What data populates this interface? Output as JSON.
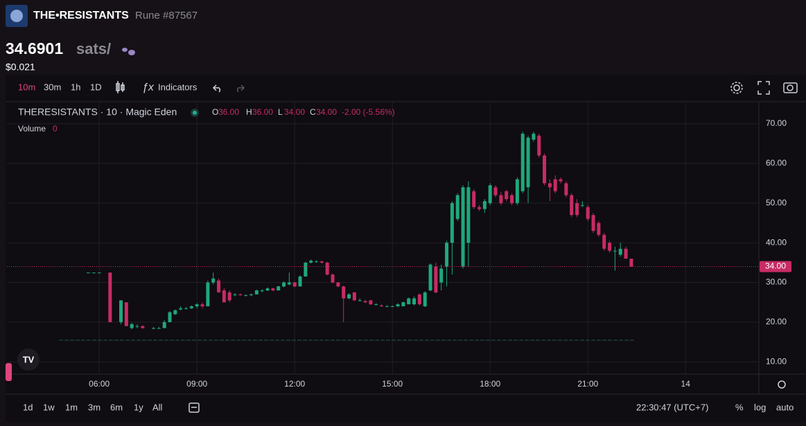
{
  "header": {
    "name": "THE•RESISTANTS",
    "rune": "Rune #87567",
    "price": "34.6901",
    "unit": "sats/",
    "usd": "$0.021"
  },
  "toolbar": {
    "intervals": [
      "10m",
      "30m",
      "1h",
      "1D"
    ],
    "indicators": "Indicators"
  },
  "bottom_bar": {
    "ranges": [
      "1d",
      "1w",
      "1m",
      "3m",
      "6m",
      "1y",
      "All"
    ],
    "clock": "22:30:47 (UTC+7)",
    "options": [
      "%",
      "log",
      "auto"
    ]
  },
  "chart_data": {
    "type": "candlestick",
    "legend": {
      "symbol": "THERESISTANTS · 10 · Magic Eden",
      "ohlc": [
        {
          "label": "O",
          "value": "36.00"
        },
        {
          "label": "H",
          "value": "36.00"
        },
        {
          "label": "L",
          "value": "34.00"
        },
        {
          "label": "C",
          "value": "34.00"
        }
      ],
      "change": "-2.00 (-5.56%)",
      "volume_label": "Volume",
      "volume_value": "0"
    },
    "up_color": "#1fa87a",
    "down_color": "#c72c64",
    "grid": true,
    "xlim": [
      190,
      1575
    ],
    "xticks": [
      {
        "value": 360,
        "label": "06:00"
      },
      {
        "value": 540,
        "label": "09:00"
      },
      {
        "value": 720,
        "label": "12:00"
      },
      {
        "value": 900,
        "label": "15:00"
      },
      {
        "value": 1080,
        "label": "18:00"
      },
      {
        "value": 1260,
        "label": "21:00"
      },
      {
        "value": 1440,
        "label": "14"
      }
    ],
    "ylim": [
      6.9,
      75.4
    ],
    "yticks": [
      {
        "value": 10,
        "label": "10.00"
      },
      {
        "value": 20,
        "label": "20.00"
      },
      {
        "value": 30,
        "label": "30.00"
      },
      {
        "value": 40,
        "label": "40.00"
      },
      {
        "value": 50,
        "label": "50.00"
      },
      {
        "value": 60,
        "label": "60.00"
      },
      {
        "value": 70,
        "label": "70.00"
      }
    ],
    "last_price": {
      "value": 34,
      "label": "34.00"
    },
    "x": [
      340,
      350,
      360,
      380,
      400,
      410,
      420,
      430,
      440,
      460,
      470,
      480,
      490,
      500,
      510,
      520,
      530,
      540,
      550,
      560,
      570,
      580,
      590,
      600,
      610,
      620,
      630,
      640,
      650,
      660,
      670,
      680,
      690,
      700,
      710,
      720,
      730,
      740,
      750,
      760,
      770,
      780,
      790,
      800,
      810,
      820,
      830,
      840,
      850,
      860,
      870,
      880,
      890,
      900,
      910,
      920,
      930,
      940,
      950,
      960,
      970,
      980,
      990,
      1000,
      1010,
      1020,
      1030,
      1040,
      1050,
      1060,
      1070,
      1080,
      1090,
      1100,
      1110,
      1120,
      1130,
      1140,
      1150,
      1160,
      1170,
      1180,
      1190,
      1200,
      1210,
      1220,
      1230,
      1240,
      1250,
      1260,
      1270,
      1280,
      1290,
      1300,
      1310,
      1320,
      1330,
      1340
    ],
    "open": [
      32.5,
      32.5,
      32.5,
      32.5,
      20,
      25,
      18.5,
      19,
      19,
      18.5,
      18.5,
      18.5,
      20,
      22,
      23.2,
      23.5,
      23.5,
      24,
      24.5,
      24,
      30,
      30.5,
      28,
      27.5,
      27,
      27,
      26.8,
      26.8,
      27,
      28,
      28,
      28.5,
      28,
      29,
      29.5,
      30,
      29,
      31.5,
      35,
      35.3,
      35.3,
      35,
      32,
      30,
      29,
      26,
      27.5,
      25.5,
      25.3,
      25.5,
      24.5,
      24.2,
      24,
      24,
      24,
      24,
      24.5,
      24.5,
      27,
      24,
      28,
      34,
      30,
      34,
      40,
      46,
      34,
      40,
      53,
      49,
      48.5,
      50,
      54,
      52,
      53,
      52,
      50,
      53,
      54,
      66,
      67,
      62,
      55,
      56,
      56,
      55,
      52,
      50,
      49.5,
      49,
      47,
      45,
      42,
      40,
      38,
      37,
      38.5,
      36
    ],
    "high": [
      32.5,
      32.5,
      32.5,
      32.5,
      25.5,
      25,
      19.8,
      19.5,
      19.2,
      18.8,
      18.8,
      20.5,
      22.8,
      23.2,
      24,
      23.8,
      24.2,
      24.8,
      25,
      30.5,
      32.5,
      31,
      28.5,
      28,
      27.3,
      27.2,
      27,
      27.2,
      28.2,
      28.3,
      28.8,
      28.7,
      29.2,
      30.3,
      32.5,
      30.2,
      31.8,
      35.2,
      35.8,
      35.6,
      35.5,
      35.2,
      32.3,
      30.2,
      29.2,
      27.3,
      27.6,
      26,
      25.6,
      25.6,
      24.8,
      24.5,
      24.3,
      24.2,
      24.8,
      25.2,
      26.2,
      26.5,
      27.2,
      27.8,
      34.8,
      35,
      34.5,
      40.5,
      50.5,
      52.5,
      54.5,
      55.5,
      53.5,
      49.5,
      51,
      55,
      54.5,
      52.8,
      53.3,
      52.5,
      56.5,
      68,
      67,
      68,
      67.5,
      62.5,
      56,
      57,
      56.5,
      55.5,
      52.5,
      51,
      50.5,
      49.5,
      47.5,
      45.5,
      42.5,
      40.5,
      39,
      40,
      39,
      36
    ],
    "low": [
      32.5,
      32.5,
      32.5,
      20,
      19.5,
      19,
      18.2,
      18.5,
      18.3,
      18.2,
      18.3,
      18.5,
      20,
      21.8,
      23,
      23.2,
      23.3,
      23.5,
      23.5,
      24,
      29.5,
      27.5,
      25,
      25,
      26.5,
      26.7,
      26.5,
      26.5,
      27,
      27.5,
      27.8,
      27.8,
      28,
      28.8,
      29.3,
      28.8,
      29,
      31.5,
      34.8,
      35,
      34.8,
      31.8,
      29.8,
      28.8,
      20,
      25.8,
      25.3,
      25.2,
      24.8,
      24.3,
      24.2,
      23.8,
      23.8,
      23.8,
      23.8,
      24,
      24.5,
      24.2,
      24.2,
      23.8,
      27.8,
      27.3,
      28,
      29,
      32,
      45.5,
      33.5,
      34,
      48.5,
      48,
      47.5,
      49.5,
      51.5,
      49.5,
      50.5,
      49.5,
      49.5,
      52.5,
      50,
      65.5,
      61.5,
      54.5,
      50.5,
      52.5,
      55,
      51.5,
      46.5,
      46.5,
      49,
      45.5,
      42.5,
      41.5,
      38,
      37.5,
      33,
      36.5,
      36,
      34
    ],
    "close": [
      32.5,
      32.5,
      32.5,
      20,
      25.5,
      19,
      19.5,
      19,
      18.5,
      18.5,
      18.5,
      20,
      22.5,
      23,
      23.5,
      23.5,
      24,
      24.5,
      24,
      30,
      31,
      27.5,
      25,
      25.5,
      27,
      26.8,
      26.8,
      27,
      28,
      28,
      28.5,
      28,
      29,
      30,
      30,
      29,
      31.5,
      35,
      35.5,
      35.3,
      35,
      32,
      30,
      29,
      26,
      27,
      25.5,
      25.5,
      25,
      24.5,
      24.5,
      24,
      24,
      24,
      24.5,
      25,
      26,
      26,
      24.5,
      27.5,
      34.5,
      27.5,
      33.5,
      40,
      50,
      52,
      54,
      54,
      49,
      48.5,
      50.5,
      54.5,
      52,
      50,
      51,
      50,
      56,
      67.5,
      66.5,
      67.5,
      62,
      55,
      54,
      53,
      55.5,
      52,
      47,
      47,
      49.5,
      46,
      43,
      42,
      38.5,
      38,
      38,
      38.5,
      36,
      34
    ]
  }
}
